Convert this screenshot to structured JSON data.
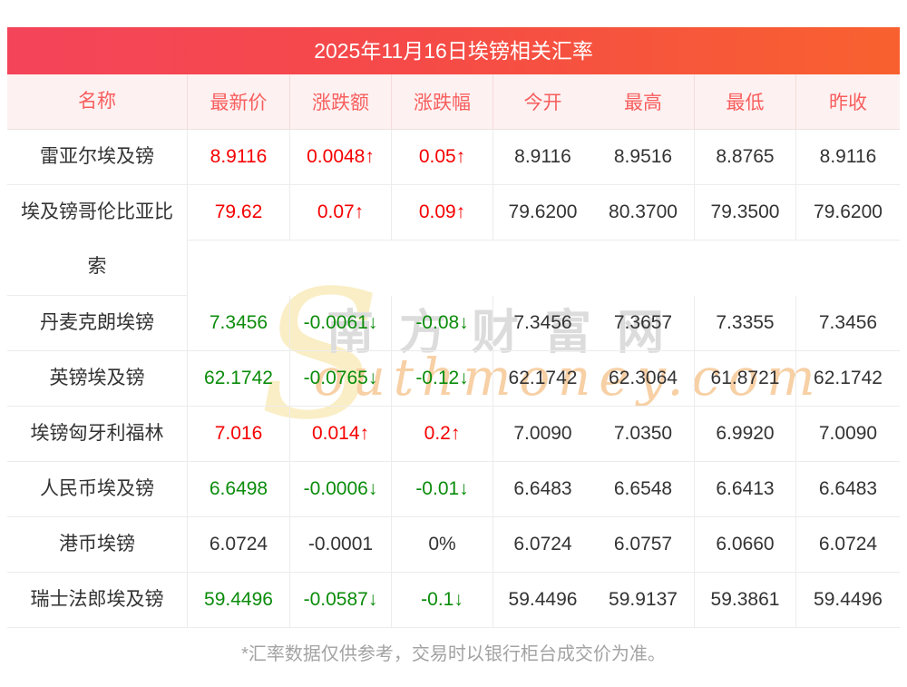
{
  "banner": {
    "title": "2025年11月16日埃镑相关汇率"
  },
  "table": {
    "headers": [
      "名称",
      "最新价",
      "涨跌额",
      "涨跌幅",
      "今开",
      "最高",
      "最低",
      "昨收"
    ],
    "rows": [
      {
        "name": "雷亚尔埃及镑",
        "latest": "8.9116",
        "change": "0.0048↑",
        "change_pct": "0.05↑",
        "open": "8.9116",
        "high": "8.9516",
        "low": "8.8765",
        "prev_close": "8.9116",
        "trend": "up"
      },
      {
        "name": "埃及镑哥伦比亚比索",
        "latest": "79.62",
        "change": "0.07↑",
        "change_pct": "0.09↑",
        "open": "79.6200",
        "high": "80.3700",
        "low": "79.3500",
        "prev_close": "79.6200",
        "trend": "up"
      },
      {
        "name": "丹麦克朗埃镑",
        "latest": "7.3456",
        "change": "-0.0061↓",
        "change_pct": "-0.08↓",
        "open": "7.3456",
        "high": "7.3657",
        "low": "7.3355",
        "prev_close": "7.3456",
        "trend": "down"
      },
      {
        "name": "英镑埃及镑",
        "latest": "62.1742",
        "change": "-0.0765↓",
        "change_pct": "-0.12↓",
        "open": "62.1742",
        "high": "62.3064",
        "low": "61.8721",
        "prev_close": "62.1742",
        "trend": "down"
      },
      {
        "name": "埃镑匈牙利福林",
        "latest": "7.016",
        "change": "0.014↑",
        "change_pct": "0.2↑",
        "open": "7.0090",
        "high": "7.0350",
        "low": "6.9920",
        "prev_close": "7.0090",
        "trend": "up"
      },
      {
        "name": "人民币埃及镑",
        "latest": "6.6498",
        "change": "-0.0006↓",
        "change_pct": "-0.01↓",
        "open": "6.6483",
        "high": "6.6548",
        "low": "6.6413",
        "prev_close": "6.6483",
        "trend": "down"
      },
      {
        "name": "港币埃镑",
        "latest": "6.0724",
        "change": "-0.0001",
        "change_pct": "0%",
        "open": "6.0724",
        "high": "6.0757",
        "low": "6.0660",
        "prev_close": "6.0724",
        "trend": "flat"
      },
      {
        "name": "瑞士法郎埃及镑",
        "latest": "59.4496",
        "change": "-0.0587↓",
        "change_pct": "-0.1↓",
        "open": "59.4496",
        "high": "59.9137",
        "low": "59.3861",
        "prev_close": "59.4496",
        "trend": "down"
      }
    ]
  },
  "watermark": {
    "flourish": "S",
    "cn": "南方财富网",
    "en": "outhmoney.com"
  },
  "footer": {
    "note": "*汇率数据仅供参考，交易时以银行柜台成交价为准。"
  },
  "colors": {
    "banner_from": "#f4445a",
    "banner_to": "#f8612f",
    "header_bg": "#fdf1f1",
    "header_text": "#f85e5e",
    "up": "#f50000",
    "down": "#0b8c0b",
    "wm_gray": "#dcdcdc",
    "wm_orange": "#f7d0a5",
    "wm_cream": "#faeec6"
  }
}
